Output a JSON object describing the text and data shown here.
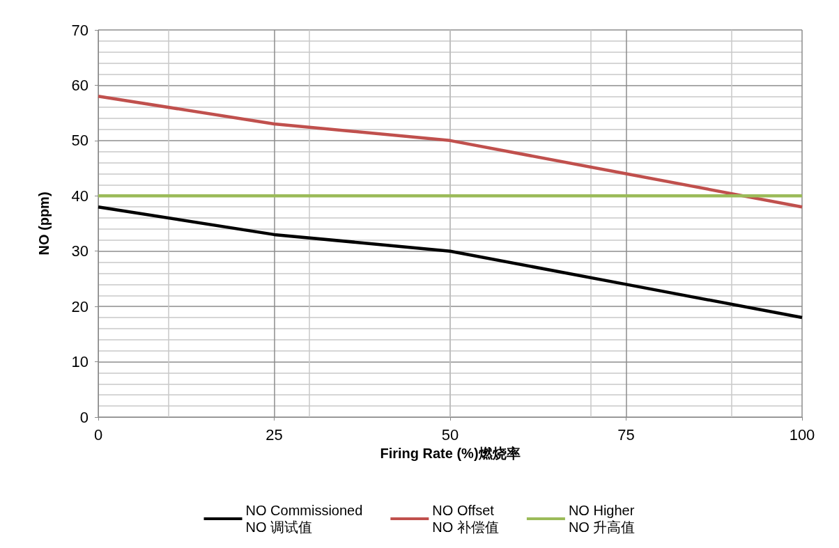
{
  "chart_data": {
    "type": "line",
    "xlabel": "Firing Rate (%)燃烧率",
    "ylabel": "NO (ppm)",
    "x": [
      0,
      25,
      50,
      75,
      100
    ],
    "series": [
      {
        "name": "NO Commissioned\nNO 调试值",
        "color": "#000000",
        "values": [
          38,
          33,
          30,
          24,
          18
        ]
      },
      {
        "name": "NO Offset\nNO 补偿值",
        "color": "#c0504d",
        "values": [
          58,
          53,
          50,
          44,
          38
        ]
      },
      {
        "name": "NO Higher\nNO 升高值",
        "color": "#9bbb59",
        "values": [
          40,
          40,
          40,
          40,
          40
        ]
      }
    ],
    "xlim": [
      0,
      100
    ],
    "xticks": [
      0,
      25,
      50,
      75,
      100
    ],
    "ylim": [
      0,
      70
    ],
    "yticks": [
      0,
      10,
      20,
      30,
      40,
      50,
      60,
      70
    ],
    "grid": true,
    "legend": "bottom",
    "marker": "none",
    "line_style": "solid"
  }
}
